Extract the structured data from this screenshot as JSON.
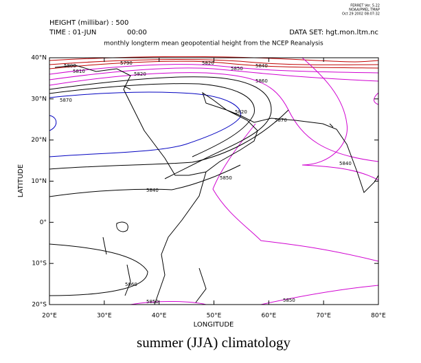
{
  "header": {
    "ferret": [
      "FERRET Ver. 5.22",
      "NOAA/PMEL TMAP",
      "Oct 29 2002 08:07:32"
    ],
    "height_label": "HEIGHT (millibar) : 500",
    "time_label": "TIME : 01-JUN",
    "time": "00:00",
    "dataset": "DATA SET: hgt.mon.ltm.nc",
    "title": "monthly longterm mean geopotential height from the NCEP Reanalysis"
  },
  "map": {
    "xlabel": "LONGITUDE",
    "ylabel": "LATITUDE",
    "xlim": [
      20,
      80
    ],
    "ylim": [
      -20,
      40
    ],
    "xticks": [
      {
        "value": 20,
        "label": "20°E"
      },
      {
        "value": 30,
        "label": "30°E"
      },
      {
        "value": 40,
        "label": "40°E"
      },
      {
        "value": 50,
        "label": "50°E"
      },
      {
        "value": 60,
        "label": "60°E"
      },
      {
        "value": 70,
        "label": "70°E"
      },
      {
        "value": 80,
        "label": "80°E"
      }
    ],
    "yticks": [
      {
        "value": -20,
        "label": "20°S"
      },
      {
        "value": -10,
        "label": "10°S"
      },
      {
        "value": 0,
        "label": "0°"
      },
      {
        "value": 10,
        "label": "10°N"
      },
      {
        "value": 20,
        "label": "20°N"
      },
      {
        "value": 30,
        "label": "30°N"
      },
      {
        "value": 40,
        "label": "40°N"
      }
    ],
    "contour_labels": [
      "5800",
      "5810",
      "5790",
      "5820",
      "5820",
      "5850",
      "5840",
      "5860",
      "5870",
      "5820",
      "5870",
      "5840",
      "5850",
      "5840",
      "5860",
      "5850",
      "5850"
    ]
  },
  "caption": "summer (JJA) climatology"
}
